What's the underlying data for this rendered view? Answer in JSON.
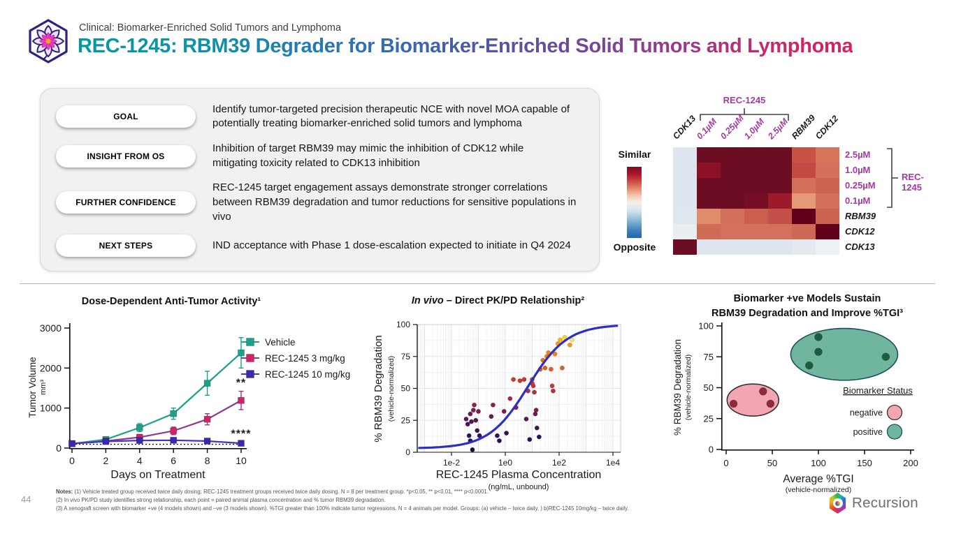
{
  "header": {
    "eyebrow": "Clinical: Biomarker-Enriched Solid Tumors and Lymphoma",
    "title": "REC-1245: RBM39 Degrader for Biomarker-Enriched Solid Tumors and Lymphoma"
  },
  "theme": {
    "title_gradient": [
      "#009aa0",
      "#2b74b4",
      "#4d58a8",
      "#9a3a88",
      "#d81f62"
    ],
    "accent_purple": "#a4399f",
    "divider": "#b5b5b5"
  },
  "summary_rows": [
    {
      "label": "GOAL",
      "text": "Identify tumor-targeted precision therapeutic NCE with novel MOA capable of potentially treating biomarker-enriched solid tumors and lymphoma"
    },
    {
      "label": "INSIGHT FROM OS",
      "text": "Inhibition of target RBM39 may mimic the inhibition of CDK12 while mitigating toxicity related to CDK13 inhibition"
    },
    {
      "label": "FURTHER CONFIDENCE",
      "text": "REC-1245 target engagement assays demonstrate stronger correlations between RBM39 degradation and tumor reductions for sensitive populations in vivo"
    },
    {
      "label": "NEXT STEPS",
      "text": "IND acceptance with Phase 1 dose-escalation expected to initiate in Q4 2024"
    }
  ],
  "chart_data": [
    {
      "type": "heatmap",
      "group_label_top": "REC-1245",
      "group_label_right": "REC-1245",
      "col_labels": [
        "CDK13",
        "0.1µM",
        "0.25µM",
        "1.0µM",
        "2.5µM",
        "RBM39",
        "CDK12"
      ],
      "col_styles": [
        "gene",
        "dose",
        "dose",
        "dose",
        "dose",
        "gene",
        "gene"
      ],
      "row_labels": [
        "2.5µM",
        "1.0µM",
        "0.25µM",
        "0.1µM",
        "RBM39",
        "CDK12",
        "CDK13"
      ],
      "row_styles": [
        "dose",
        "dose",
        "dose",
        "dose",
        "gene",
        "gene",
        "gene"
      ],
      "colorbar": {
        "top_label": "Similar",
        "bottom_label": "Opposite",
        "stops": [
          "#7f0d21",
          "#a91529",
          "#c94741",
          "#e2866a",
          "#f3c4ab",
          "#f8efe9",
          "#d8e7f1",
          "#a6cbe2",
          "#6da6cd",
          "#3c7fb8",
          "#2166ac"
        ]
      },
      "cells": [
        [
          "#dde6ee",
          "#6d0d24",
          "#6d0d24",
          "#6d0d24",
          "#6d0d24",
          "#c65344",
          "#d8745a"
        ],
        [
          "#dde6ee",
          "#8c1127",
          "#6d0d24",
          "#6d0d24",
          "#6d0d24",
          "#c24a43",
          "#d3705c"
        ],
        [
          "#dde6ee",
          "#6d0d24",
          "#6d0d24",
          "#6d0d24",
          "#6d0d24",
          "#d3705c",
          "#cd6450"
        ],
        [
          "#dde6ee",
          "#6d0d24",
          "#6d0d24",
          "#750d24",
          "#9c1b2b",
          "#e49a77",
          "#d3705c"
        ],
        [
          "#dfe8ef",
          "#e08b69",
          "#d3705c",
          "#ca5f4e",
          "#c24f48",
          "#62001b",
          "#cc6350"
        ],
        [
          "#e9eef3",
          "#d06b56",
          "#d3715c",
          "#d3715c",
          "#d3715c",
          "#cf6854",
          "#62001b"
        ],
        [
          "#6d0d24",
          "#dde6ee",
          "#dde6ee",
          "#dde6ee",
          "#dde6ee",
          "#e3eaf0",
          "#edf1f5"
        ]
      ]
    },
    {
      "type": "line",
      "title": "Dose-Dependent Anti-Tumor Activity¹",
      "xlabel": "Days on Treatment",
      "ylabel": "Tumor Volume",
      "ylabel2": "mm³",
      "x": [
        0,
        2,
        4,
        6,
        8,
        10
      ],
      "xlim": [
        0,
        10
      ],
      "ylim": [
        0,
        3000
      ],
      "yticks": [
        0,
        1000,
        2000,
        3000
      ],
      "baseline": 95,
      "series": [
        {
          "name": "Vehicle",
          "line": "#18a287",
          "marker": "#1aa189",
          "values": [
            110,
            215,
            510,
            860,
            1620,
            2380
          ],
          "err": [
            30,
            60,
            100,
            140,
            300,
            380
          ],
          "annotation": ""
        },
        {
          "name": "REC-1245 3 mg/kg",
          "line": "#8f3990",
          "marker": "#d02565",
          "values": [
            110,
            175,
            270,
            430,
            720,
            1190
          ],
          "err": [
            25,
            45,
            70,
            95,
            140,
            230
          ],
          "annotation": "**"
        },
        {
          "name": "REC-1245 10 mg/kg",
          "line": "#4136bd",
          "marker": "#3a28ad",
          "values": [
            110,
            165,
            190,
            195,
            175,
            120
          ],
          "err": [
            20,
            30,
            35,
            40,
            35,
            25
          ],
          "annotation": "****"
        }
      ]
    },
    {
      "type": "scatter",
      "title_italic": "In vivo",
      "title_rest": " – Direct PK/PD Relationship²",
      "xlabel": "REC-1245 Plasma Concentration",
      "xlabel2": "(ng/mL, unbound)",
      "ylabel": "% RBM39 Degradation",
      "ylabel2": "(vehicle-normalized)",
      "xscale": "log",
      "xticks": [
        {
          "label": "1e-2",
          "log": -2
        },
        {
          "label": "1e0",
          "log": 0
        },
        {
          "label": "1e2",
          "log": 2
        },
        {
          "label": "1e4",
          "log": 4
        }
      ],
      "yticks": [
        0,
        25,
        50,
        75,
        100
      ],
      "curve": {
        "color": "#2d2dc8",
        "bottom": 3,
        "top": 100,
        "ec50": 7,
        "hill": 0.6
      },
      "points": [
        [
          0.035,
          26,
          "#5b1a53"
        ],
        [
          0.04,
          22,
          "#4a1458"
        ],
        [
          0.045,
          13,
          "#2d115f"
        ],
        [
          0.05,
          9,
          "#26105c"
        ],
        [
          0.05,
          30,
          "#6d1b50"
        ],
        [
          0.055,
          24,
          "#531750"
        ],
        [
          0.06,
          2,
          "#190f3e"
        ],
        [
          0.065,
          33,
          "#7c1d4c"
        ],
        [
          0.07,
          37,
          "#8e2245"
        ],
        [
          0.08,
          25,
          "#571849"
        ],
        [
          0.09,
          17,
          "#3a1358"
        ],
        [
          0.1,
          32,
          "#76204e"
        ],
        [
          0.11,
          13,
          "#2d115f"
        ],
        [
          0.3,
          28,
          "#641a4e"
        ],
        [
          0.35,
          37,
          "#8e2245"
        ],
        [
          0.5,
          13,
          "#2d115f"
        ],
        [
          0.6,
          9,
          "#26105c"
        ],
        [
          0.9,
          32,
          "#76204e"
        ],
        [
          1.1,
          15,
          "#341257"
        ],
        [
          1.5,
          42,
          "#9e2a41"
        ],
        [
          2,
          57,
          "#c43b31"
        ],
        [
          2.5,
          35,
          "#86214a"
        ],
        [
          3.5,
          56,
          "#c23a33"
        ],
        [
          5,
          57,
          "#c43b31"
        ],
        [
          6,
          26,
          "#5b1a53"
        ],
        [
          7,
          48,
          "#ae3440"
        ],
        [
          8,
          10,
          "#26105c"
        ],
        [
          10,
          57,
          "#cb4229"
        ],
        [
          10,
          54,
          "#c03b36"
        ],
        [
          11,
          52,
          "#bc3a3a"
        ],
        [
          12,
          47,
          "#ab323f"
        ],
        [
          13,
          30,
          "#6d1b50"
        ],
        [
          14,
          33,
          "#7c1d4c"
        ],
        [
          15,
          19,
          "#40135a"
        ],
        [
          18,
          12,
          "#2d115f"
        ],
        [
          20,
          65,
          "#dc5d25"
        ],
        [
          25,
          72,
          "#e66d1f"
        ],
        [
          30,
          66,
          "#de6023"
        ],
        [
          35,
          75,
          "#e97819"
        ],
        [
          40,
          78,
          "#ee8312"
        ],
        [
          50,
          65,
          "#dc5d25"
        ],
        [
          55,
          52,
          "#bc3a3a"
        ],
        [
          60,
          48,
          "#ae3440"
        ],
        [
          70,
          77,
          "#ed7f14"
        ],
        [
          90,
          85,
          "#f69c0a"
        ],
        [
          110,
          88,
          "#f8b41c"
        ],
        [
          130,
          66,
          "#de6023"
        ],
        [
          160,
          90,
          "#f6cf44"
        ],
        [
          250,
          84,
          "#f5970b"
        ],
        [
          300,
          88,
          "#fade70"
        ]
      ]
    },
    {
      "type": "scatter-groups",
      "title_line1": "Biomarker +ve Models Sustain",
      "title_line2": "RBM39 Degradation and Improve %TGI³",
      "xlabel": "Average %TGI",
      "xlabel2": "(vehicle-normalized)",
      "ylabel": "% RBM39 Degradation",
      "ylabel2": "(vehicle-normalized)",
      "xticks": [
        0,
        50,
        100,
        150,
        200
      ],
      "yticks": [
        0,
        25,
        50,
        75,
        100
      ],
      "legend_title": "Biomarker Status",
      "groups": [
        {
          "name": "negative",
          "fill": "#f4a5b4",
          "stroke": "#333333",
          "dot": "#8e2b39",
          "ellipse": {
            "cx": 29,
            "cy": 40,
            "rx": 28,
            "ry": 13
          },
          "points": [
            [
              8,
              37
            ],
            [
              40,
              47
            ],
            [
              48,
              37
            ]
          ]
        },
        {
          "name": "positive",
          "fill": "#70b59d",
          "stroke": "#1d4f5a",
          "dot": "#1e5c40",
          "ellipse": {
            "cx": 128,
            "cy": 77,
            "rx": 58,
            "ry": 21
          },
          "points": [
            [
              90,
              68
            ],
            [
              100,
              91
            ],
            [
              100,
              79
            ],
            [
              173,
              75
            ]
          ]
        }
      ]
    }
  ],
  "footer": {
    "page_number": "44",
    "notes_label": "Notes:",
    "notes": [
      "(1) Vehicle treated group received twice daily dosing; REC-1245 treatment groups received twice daily dosing.  N = 8 per treatment group. *p<0.05, ** p<0.01, **** p<0.0001.",
      "(2) In vivo PK/PD study identifies strong relationship, each point = paired animal plasma concentration and % tumor RBM39 degradation.",
      "(3) A xenograft screen with biomarker +ve (4 models shown) and –ve (3 models shown). %TGI greater than 100% indicate tumor regressions. N = 4 animals per model. Groups: (a) vehicle – twice daily, ) b)REC-1245 10mg/kg – twice daily."
    ],
    "brand": "Recursion"
  }
}
